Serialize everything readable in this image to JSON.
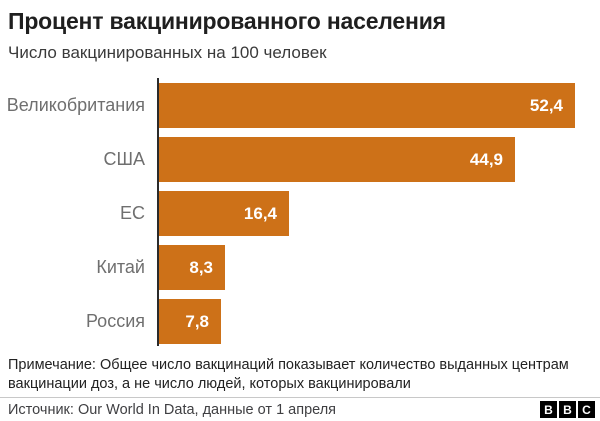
{
  "header": {
    "title": "Процент вакцинированного населения",
    "subtitle": "Число вакцинированных на 100 человек"
  },
  "chart_data": {
    "type": "bar",
    "orientation": "horizontal",
    "title": "Процент вакцинированного населения",
    "subtitle": "Число вакцинированных на 100 человек",
    "categories": [
      "Великобритания",
      "США",
      "ЕС",
      "Китай",
      "Россия"
    ],
    "values": [
      52.4,
      44.9,
      16.4,
      8.3,
      7.8
    ],
    "value_labels": [
      "52,4",
      "44,9",
      "16,4",
      "8,3",
      "7,8"
    ],
    "xlabel": "",
    "ylabel": "",
    "xlim": [
      0,
      52.4
    ],
    "grid": false,
    "legend": false,
    "bar_color": "#CD7118",
    "axis_color": "#2B2B2B",
    "value_label_color": "#FFFFFF",
    "category_label_color": "#6F6F6F"
  },
  "footer": {
    "note": "Примечание: Общее число вакцинаций показывает количество выданных центрам вакцинации доз, а не число людей, которых вакцинировали",
    "source": "Источник: Our World In Data, данные от 1 апреля",
    "logo_letters": [
      "B",
      "B",
      "C"
    ]
  }
}
